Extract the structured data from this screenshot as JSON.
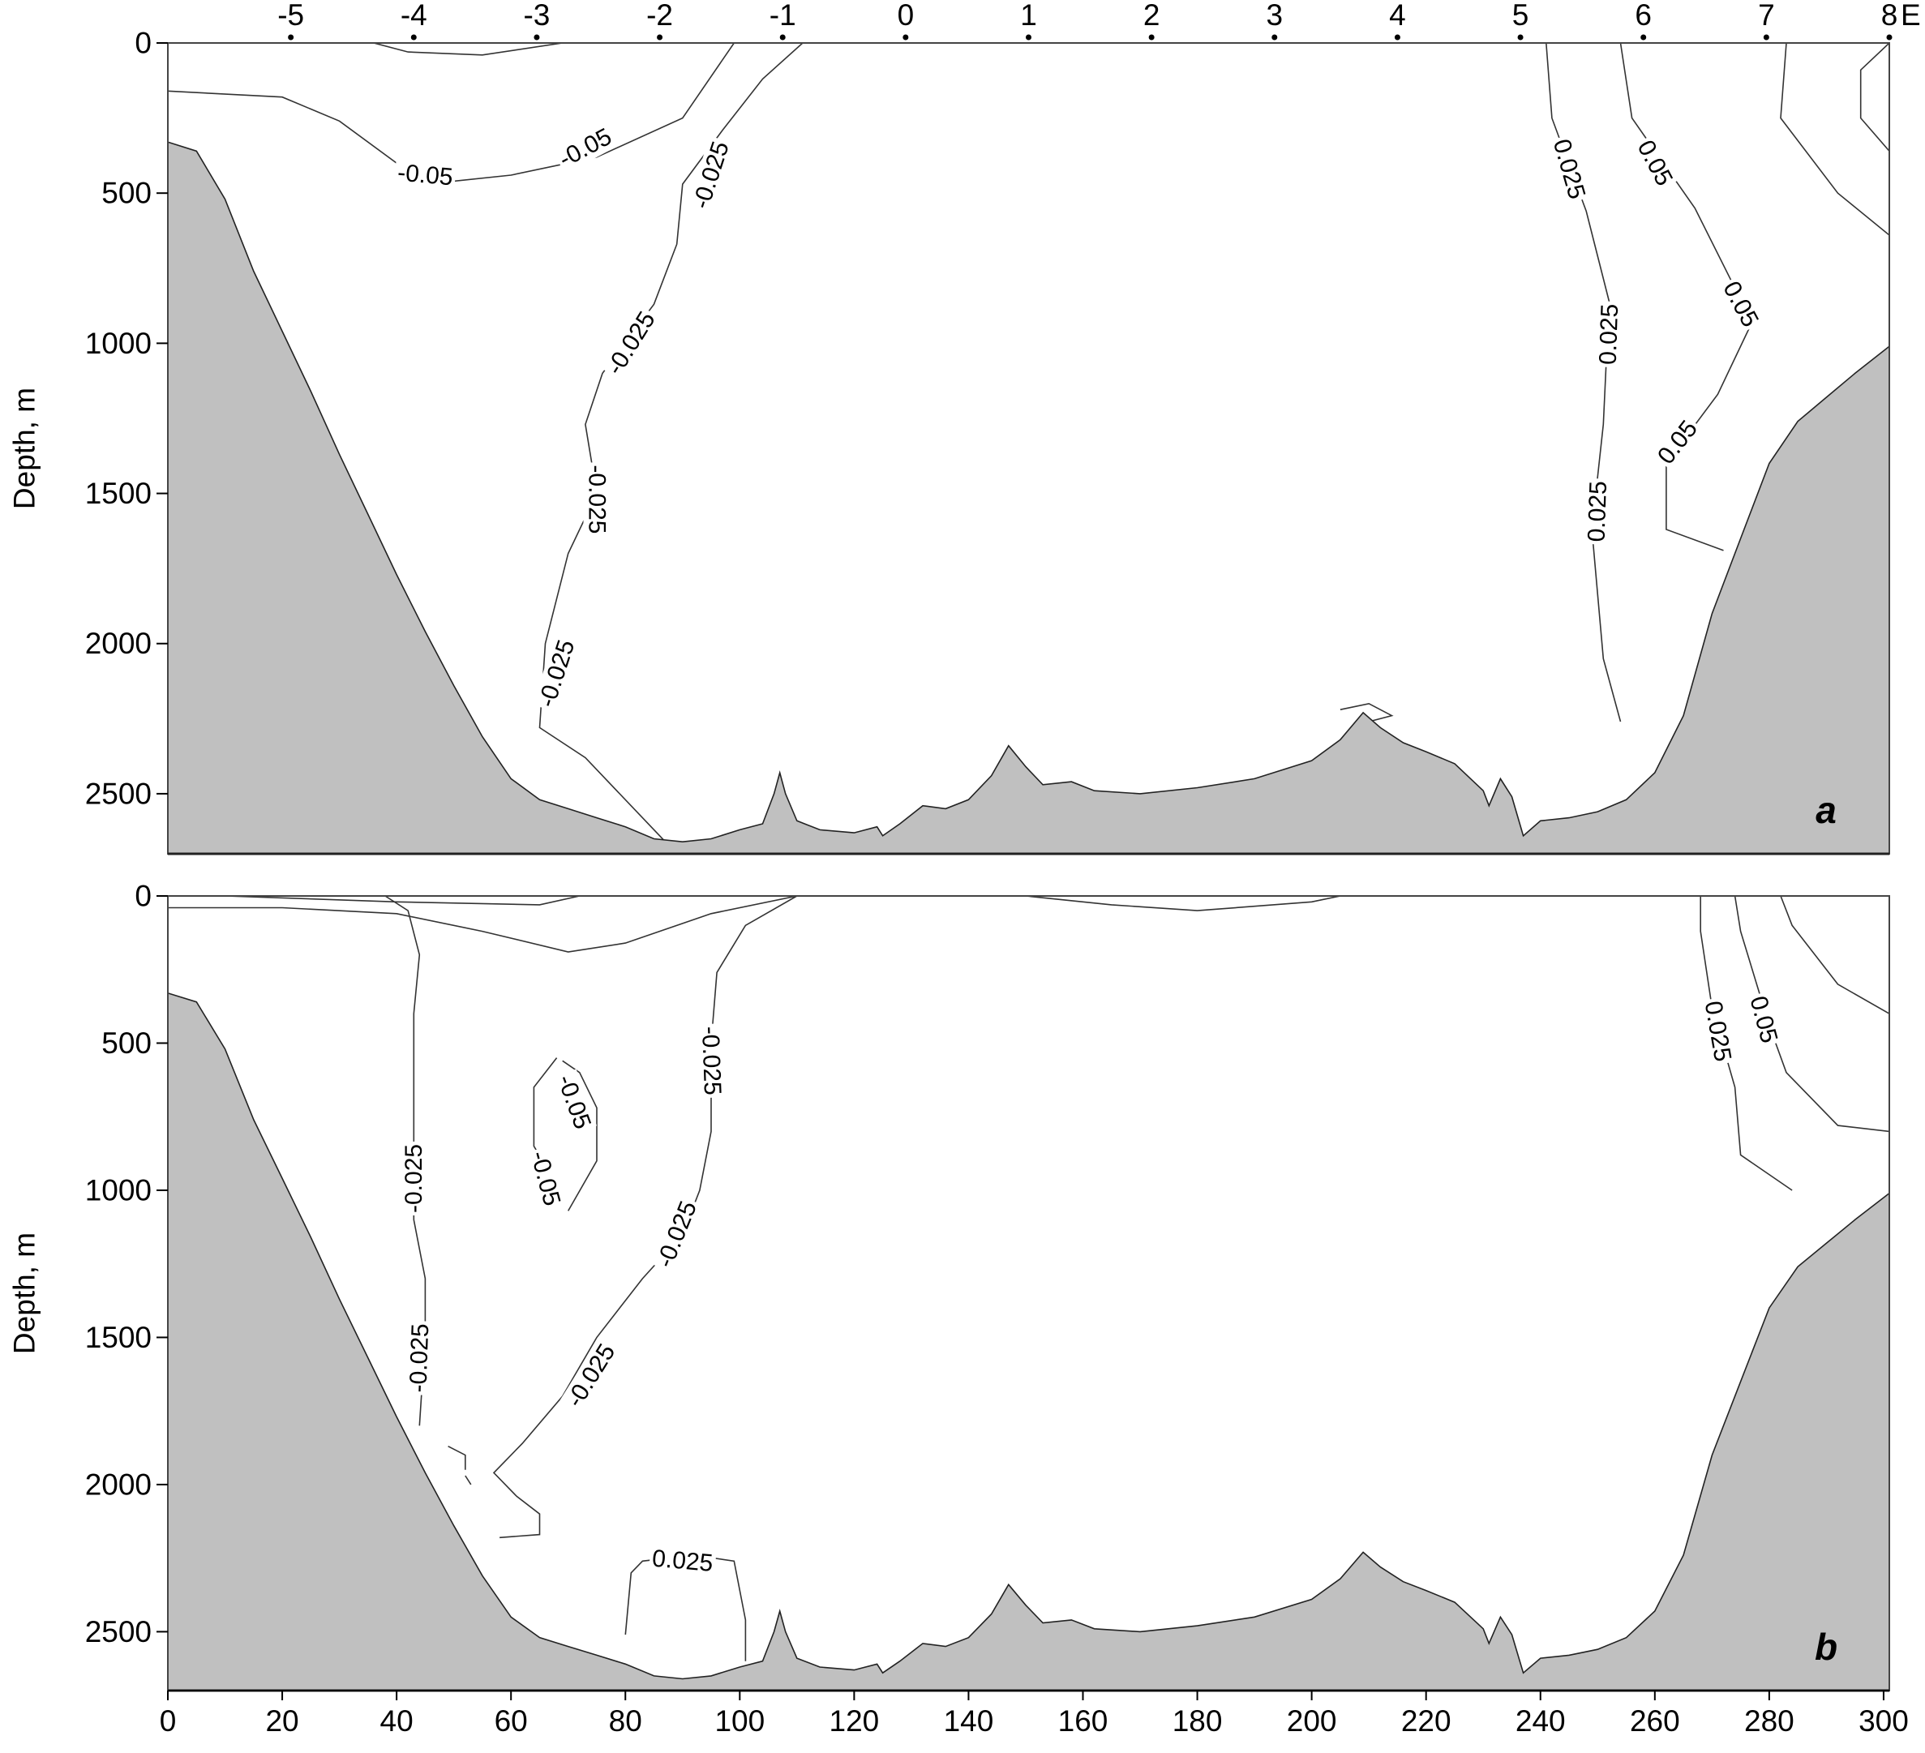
{
  "chart_data": {
    "type": "contour-section",
    "ylabel": "Depth, m",
    "x_bottom": {
      "ticks": [
        0,
        20,
        40,
        60,
        80,
        100,
        120,
        140,
        160,
        180,
        200,
        220,
        240,
        260,
        280,
        300
      ],
      "range": [
        0,
        301
      ]
    },
    "x_top": {
      "label": "E",
      "ticks": [
        -5,
        -4,
        -3,
        -2,
        -1,
        0,
        1,
        2,
        3,
        4,
        5,
        6,
        7,
        8
      ],
      "bottom_position": [
        21.5,
        43,
        64.5,
        86,
        107.5,
        129,
        150.5,
        172,
        193.5,
        215,
        236.5,
        258,
        279.5,
        301
      ]
    },
    "y_ticks": [
      0,
      500,
      1000,
      1500,
      2000,
      2500
    ],
    "y_range": [
      0,
      2700
    ],
    "bathymetry": [
      [
        0,
        330
      ],
      [
        5,
        360
      ],
      [
        10,
        520
      ],
      [
        15,
        760
      ],
      [
        20,
        960
      ],
      [
        25,
        1160
      ],
      [
        30,
        1370
      ],
      [
        35,
        1570
      ],
      [
        40,
        1770
      ],
      [
        45,
        1960
      ],
      [
        50,
        2140
      ],
      [
        55,
        2310
      ],
      [
        60,
        2450
      ],
      [
        65,
        2520
      ],
      [
        70,
        2550
      ],
      [
        75,
        2580
      ],
      [
        80,
        2610
      ],
      [
        85,
        2650
      ],
      [
        90,
        2660
      ],
      [
        95,
        2650
      ],
      [
        100,
        2620
      ],
      [
        104,
        2600
      ],
      [
        106,
        2500
      ],
      [
        107,
        2430
      ],
      [
        108,
        2500
      ],
      [
        110,
        2590
      ],
      [
        114,
        2620
      ],
      [
        120,
        2630
      ],
      [
        124,
        2610
      ],
      [
        125,
        2640
      ],
      [
        128,
        2600
      ],
      [
        132,
        2540
      ],
      [
        136,
        2550
      ],
      [
        140,
        2520
      ],
      [
        144,
        2440
      ],
      [
        147,
        2340
      ],
      [
        150,
        2410
      ],
      [
        153,
        2470
      ],
      [
        158,
        2460
      ],
      [
        162,
        2490
      ],
      [
        170,
        2500
      ],
      [
        180,
        2480
      ],
      [
        190,
        2450
      ],
      [
        200,
        2390
      ],
      [
        205,
        2320
      ],
      [
        209,
        2230
      ],
      [
        212,
        2280
      ],
      [
        216,
        2330
      ],
      [
        220,
        2360
      ],
      [
        225,
        2400
      ],
      [
        230,
        2490
      ],
      [
        231,
        2540
      ],
      [
        233,
        2450
      ],
      [
        235,
        2510
      ],
      [
        237,
        2640
      ],
      [
        240,
        2590
      ],
      [
        245,
        2580
      ],
      [
        250,
        2560
      ],
      [
        255,
        2520
      ],
      [
        260,
        2430
      ],
      [
        265,
        2240
      ],
      [
        270,
        1900
      ],
      [
        275,
        1650
      ],
      [
        280,
        1400
      ],
      [
        285,
        1260
      ],
      [
        290,
        1180
      ],
      [
        295,
        1100
      ],
      [
        301,
        1010
      ]
    ],
    "panels": [
      {
        "letter": "a",
        "contours": [
          {
            "level": -0.05,
            "points": [
              [
                0,
                160
              ],
              [
                20,
                180
              ],
              [
                30,
                260
              ],
              [
                40,
                400
              ],
              [
                50,
                460
              ],
              [
                60,
                440
              ],
              [
                75,
                380
              ],
              [
                90,
                250
              ],
              [
                99,
                0
              ]
            ]
          },
          {
            "level": -0.025,
            "points": [
              [
                111,
                0
              ],
              [
                104,
                120
              ],
              [
                97,
                290
              ],
              [
                90,
                470
              ],
              [
                89,
                670
              ],
              [
                85,
                870
              ],
              [
                76,
                1100
              ],
              [
                73,
                1270
              ],
              [
                75,
                1500
              ],
              [
                70,
                1700
              ],
              [
                66,
                2000
              ],
              [
                65,
                2280
              ],
              [
                73,
                2380
              ],
              [
                87,
                2660
              ]
            ]
          },
          {
            "level": -0.05,
            "points": [
              [
                36,
                0
              ],
              [
                42,
                30
              ],
              [
                55,
                40
              ],
              [
                69,
                0
              ]
            ]
          },
          {
            "level": 0.025,
            "points": [
              [
                241,
                0
              ],
              [
                242,
                250
              ],
              [
                248,
                560
              ],
              [
                252,
                860
              ],
              [
                251,
                1270
              ],
              [
                249,
                1620
              ],
              [
                251,
                2050
              ],
              [
                254,
                2260
              ]
            ]
          },
          {
            "level": 0.05,
            "points": [
              [
                254,
                0
              ],
              [
                256,
                250
              ],
              [
                267,
                550
              ],
              [
                277,
                930
              ],
              [
                271,
                1170
              ],
              [
                262,
                1400
              ],
              [
                262,
                1620
              ],
              [
                272,
                1690
              ]
            ]
          },
          {
            "level": "",
            "points": [
              [
                283,
                0
              ],
              [
                282,
                250
              ],
              [
                292,
                500
              ],
              [
                301,
                640
              ]
            ]
          },
          {
            "level": "",
            "points": [
              [
                301,
                0
              ],
              [
                296,
                90
              ],
              [
                296,
                250
              ],
              [
                301,
                360
              ]
            ]
          },
          {
            "level": "",
            "points": [
              [
                205,
                2220
              ],
              [
                210,
                2200
              ],
              [
                214,
                2240
              ],
              [
                210,
                2260
              ]
            ]
          }
        ],
        "labels": [
          {
            "text": "-0.05",
            "x": 45,
            "y": 440,
            "angle": 5
          },
          {
            "text": "-0.05",
            "x": 73,
            "y": 350,
            "angle": -28
          },
          {
            "text": "-0.025",
            "x": 95,
            "y": 440,
            "angle": -72
          },
          {
            "text": "-0.025",
            "x": 81,
            "y": 1000,
            "angle": -58
          },
          {
            "text": "-0.025",
            "x": 75,
            "y": 1520,
            "angle": 90
          },
          {
            "text": "-0.025",
            "x": 68,
            "y": 2100,
            "angle": -72
          },
          {
            "text": "0.025",
            "x": 245,
            "y": 420,
            "angle": 74
          },
          {
            "text": "0.025",
            "x": 252,
            "y": 970,
            "angle": -88
          },
          {
            "text": "0.025",
            "x": 250,
            "y": 1560,
            "angle": -88
          },
          {
            "text": "0.05",
            "x": 260,
            "y": 400,
            "angle": 62
          },
          {
            "text": "0.05",
            "x": 275,
            "y": 870,
            "angle": 62
          },
          {
            "text": "0.05",
            "x": 264,
            "y": 1330,
            "angle": -52
          }
        ]
      },
      {
        "letter": "b",
        "contours": [
          {
            "level": -0.05,
            "points": [
              [
                0,
                40
              ],
              [
                20,
                40
              ],
              [
                40,
                60
              ],
              [
                55,
                120
              ],
              [
                70,
                190
              ],
              [
                80,
                160
              ],
              [
                95,
                60
              ],
              [
                110,
                0
              ]
            ]
          },
          {
            "level": "",
            "points": [
              [
                10,
                0
              ],
              [
                40,
                20
              ],
              [
                65,
                30
              ],
              [
                72,
                0
              ]
            ]
          },
          {
            "level": "",
            "points": [
              [
                150,
                0
              ],
              [
                165,
                30
              ],
              [
                180,
                50
              ],
              [
                200,
                20
              ],
              [
                205,
                0
              ]
            ]
          },
          {
            "level": -0.025,
            "points": [
              [
                38,
                0
              ],
              [
                42,
                50
              ],
              [
                44,
                200
              ],
              [
                43,
                400
              ],
              [
                43,
                800
              ],
              [
                43,
                1100
              ],
              [
                45,
                1300
              ],
              [
                45,
                1500
              ],
              [
                44,
                1800
              ]
            ]
          },
          {
            "level": -0.025,
            "points": [
              [
                110,
                0
              ],
              [
                101,
                100
              ],
              [
                96,
                260
              ],
              [
                95,
                500
              ],
              [
                95,
                800
              ],
              [
                93,
                1000
              ],
              [
                90,
                1150
              ],
              [
                83,
                1300
              ],
              [
                75,
                1500
              ],
              [
                69,
                1700
              ],
              [
                62,
                1860
              ],
              [
                57,
                1960
              ],
              [
                61,
                2040
              ],
              [
                65,
                2100
              ],
              [
                65,
                2170
              ],
              [
                58,
                2180
              ]
            ]
          },
          {
            "level": -0.05,
            "points": [
              [
                68,
                550
              ],
              [
                64,
                650
              ],
              [
                64,
                850
              ],
              [
                68,
                980
              ]
            ]
          },
          {
            "level": -0.05,
            "points": [
              [
                69,
                560
              ],
              [
                72,
                600
              ],
              [
                75,
                720
              ],
              [
                75,
                900
              ],
              [
                70,
                1070
              ]
            ]
          },
          {
            "level": 0.025,
            "points": [
              [
                80,
                2510
              ],
              [
                81,
                2300
              ],
              [
                83,
                2260
              ],
              [
                92,
                2240
              ],
              [
                99,
                2260
              ],
              [
                101,
                2460
              ],
              [
                101,
                2600
              ]
            ]
          },
          {
            "level": "",
            "points": [
              [
                49,
                1870
              ],
              [
                52,
                1900
              ],
              [
                52,
                1950
              ]
            ]
          },
          {
            "level": "",
            "points": [
              [
                52,
                1970
              ],
              [
                53,
                2000
              ]
            ]
          },
          {
            "level": 0.025,
            "points": [
              [
                268,
                0
              ],
              [
                268,
                120
              ],
              [
                270,
                380
              ],
              [
                274,
                650
              ],
              [
                275,
                880
              ],
              [
                284,
                1000
              ]
            ]
          },
          {
            "level": 0.05,
            "points": [
              [
                274,
                0
              ],
              [
                275,
                120
              ],
              [
                280,
                440
              ],
              [
                283,
                600
              ],
              [
                292,
                780
              ],
              [
                301,
                800
              ]
            ]
          },
          {
            "level": "",
            "points": [
              [
                282,
                0
              ],
              [
                284,
                100
              ],
              [
                292,
                300
              ],
              [
                301,
                400
              ]
            ]
          }
        ],
        "labels": [
          {
            "text": "-0.025",
            "x": 95,
            "y": 560,
            "angle": 88
          },
          {
            "text": "-0.05",
            "x": 71,
            "y": 700,
            "angle": 70
          },
          {
            "text": "-0.05",
            "x": 66,
            "y": 960,
            "angle": 75
          },
          {
            "text": "-0.025",
            "x": 43,
            "y": 960,
            "angle": -90
          },
          {
            "text": "-0.025",
            "x": 44,
            "y": 1570,
            "angle": -88
          },
          {
            "text": "-0.025",
            "x": 89,
            "y": 1150,
            "angle": -68
          },
          {
            "text": "-0.025",
            "x": 74,
            "y": 1630,
            "angle": -58
          },
          {
            "text": "0.025",
            "x": 90,
            "y": 2260,
            "angle": 5
          },
          {
            "text": "0.025",
            "x": 271,
            "y": 460,
            "angle": 80
          },
          {
            "text": "0.05",
            "x": 279,
            "y": 420,
            "angle": 75
          }
        ]
      }
    ]
  }
}
